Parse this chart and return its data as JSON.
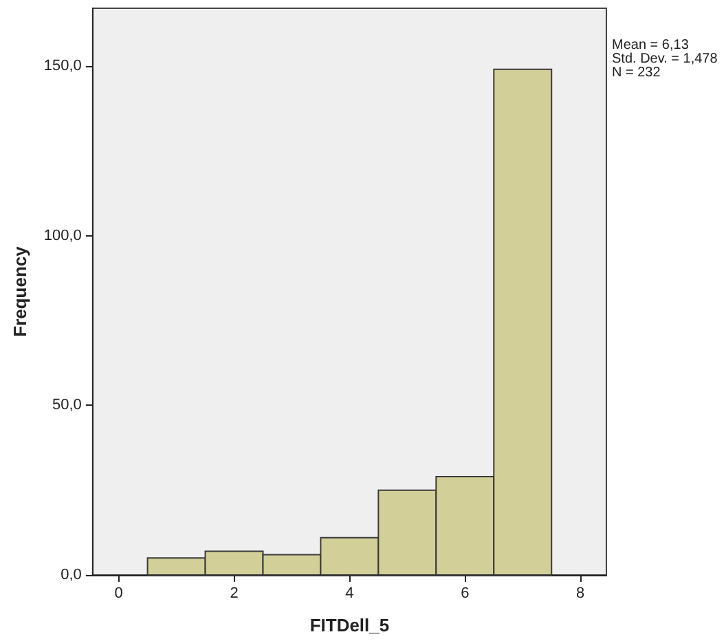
{
  "chart_data": {
    "type": "histogram",
    "xlabel": "FITDell_5",
    "ylabel": "Frequency",
    "bins": [
      0.5,
      1.5,
      2.5,
      3.5,
      4.5,
      5.5,
      6.5,
      7.5
    ],
    "values": [
      5,
      7,
      6,
      11,
      25,
      29,
      149
    ],
    "color": "#d3cf98",
    "xlim": [
      -0.45,
      8.45
    ],
    "xticks": [
      0,
      2,
      4,
      6,
      8
    ],
    "ylim": [
      0,
      167
    ],
    "yticks": [
      {
        "value": 0,
        "label": "0,0"
      },
      {
        "value": 50,
        "label": "50,0"
      },
      {
        "value": 100,
        "label": "100,0"
      },
      {
        "value": 150,
        "label": "150,0"
      }
    ],
    "annotations": [
      "Mean = 6,13\nStd. Dev. = 1,478\nN = 232"
    ],
    "grid": false
  }
}
